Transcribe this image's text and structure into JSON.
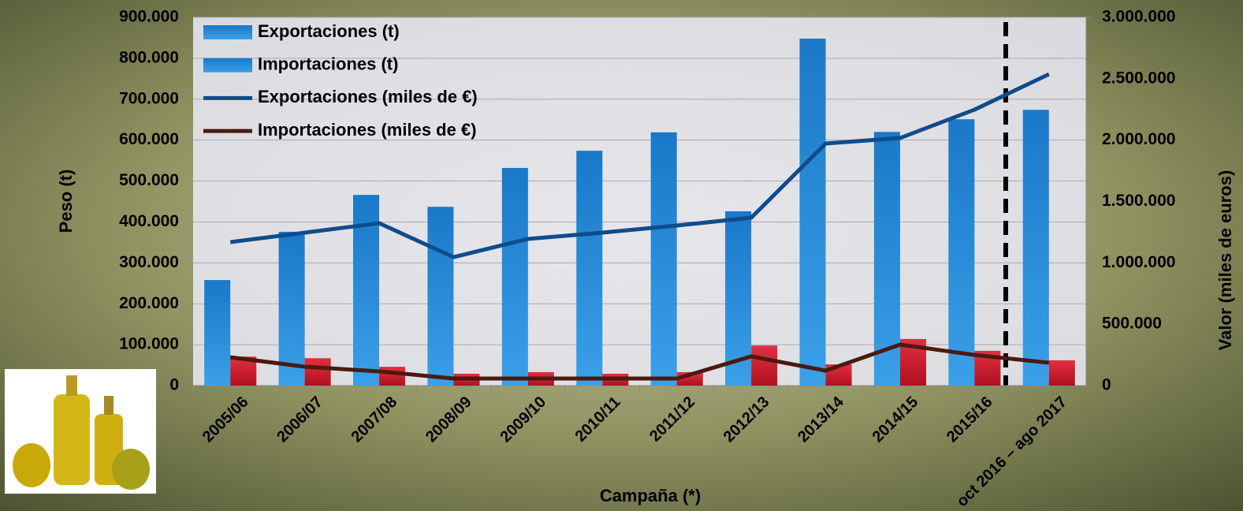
{
  "chart_data": {
    "type": "bar-line",
    "x_label": "Campaña (*)",
    "y_label": "Peso (t)",
    "y2_label": "Valor (miles de euros)",
    "categories": [
      "2005/06",
      "2006/07",
      "2007/08",
      "2008/09",
      "2009/10",
      "2010/11",
      "2011/12",
      "2012/13",
      "2013/14",
      "2014/15",
      "2015/16",
      "oct 2016 – ago 2017"
    ],
    "series": [
      {
        "name": "Exportaciones (t)",
        "kind": "bar",
        "color": "#1f82d2",
        "values": [
          258000,
          376000,
          466000,
          437000,
          532000,
          574000,
          619000,
          426000,
          848000,
          620000,
          651000,
          674000
        ]
      },
      {
        "name": "Importaciones (t)",
        "kind": "bar",
        "color": "#c81e2a",
        "values": [
          71000,
          67000,
          46000,
          29000,
          33000,
          29000,
          33000,
          98000,
          52000,
          114000,
          85000,
          62000
        ]
      },
      {
        "name": "Exportaciones (miles de €)",
        "kind": "line",
        "axis": "y2",
        "color": "#0f4c8c",
        "values": [
          1169000,
          1246000,
          1323000,
          1047000,
          1195000,
          1246000,
          1304000,
          1368000,
          1972000,
          2017000,
          2248000,
          2537000
        ]
      },
      {
        "name": "Importaciones (miles de €)",
        "kind": "line",
        "axis": "y2",
        "color": "#4a1a10",
        "values": [
          231000,
          154000,
          116000,
          58000,
          58000,
          58000,
          58000,
          238000,
          122000,
          334000,
          250000,
          186000
        ]
      }
    ],
    "ylim": [
      0,
      900000
    ],
    "yticks": [
      0,
      {
        "value": 100000,
        "label": "100.000"
      },
      {
        "value": 200000,
        "label": "200.000"
      },
      {
        "value": 300000,
        "label": "300.000"
      },
      {
        "value": 400000,
        "label": "400.000"
      },
      {
        "value": 500000,
        "label": "500.000"
      },
      {
        "value": 600000,
        "label": "600.000"
      },
      {
        "value": 700000,
        "label": "700.000"
      },
      {
        "value": 800000,
        "label": "800.000"
      },
      {
        "value": 900000,
        "label": "900.000"
      }
    ],
    "y2lim": [
      0,
      3000000
    ],
    "y2ticks": [
      0,
      {
        "value": 500000,
        "label": "500.000"
      },
      {
        "value": 1000000,
        "label": "1.000.000"
      },
      {
        "value": 1500000,
        "label": "1.500.000"
      },
      {
        "value": 2000000,
        "label": "2.000.000"
      },
      {
        "value": 2500000,
        "label": "2.500.000"
      },
      {
        "value": 3000000,
        "label": "3.000.000"
      }
    ],
    "grid": true
  }
}
